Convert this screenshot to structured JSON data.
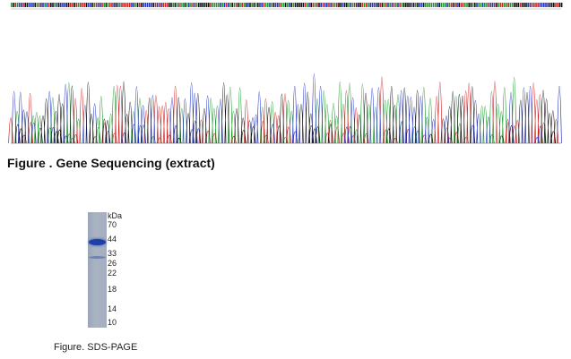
{
  "sequencing": {
    "caption": "Figure . Gene Sequencing (extract)"
  },
  "sds_page": {
    "unit": "kDa",
    "markers": [
      "70",
      "44",
      "33",
      "26",
      "22",
      "18",
      "14",
      "10"
    ],
    "caption": "Figure. SDS-PAGE"
  }
}
